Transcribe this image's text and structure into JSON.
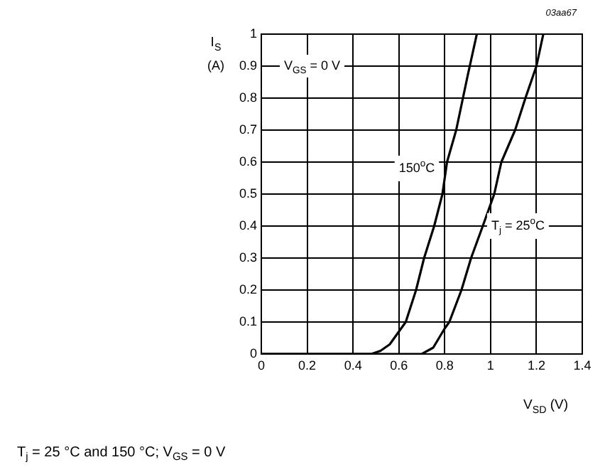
{
  "chart_data": {
    "type": "line",
    "xlabel": "V$_{SD}$ (V)",
    "ylabel": "I$_{S}$ (A)",
    "xlim": [
      0,
      1.4
    ],
    "xticks": [
      0,
      0.2,
      0.4,
      0.6,
      0.8,
      1,
      1.2,
      1.4
    ],
    "ylim": [
      0,
      1
    ],
    "yticks": [
      0,
      0.1,
      0.2,
      0.3,
      0.4,
      0.5,
      0.6,
      0.7,
      0.8,
      0.9,
      1
    ],
    "grid": true,
    "legend": false,
    "marker": "none",
    "line_style": "solid",
    "annotations": [
      "V$_{GS}$ = 0 V",
      "03aa67",
      "T$_{j}$ = 25 °C and 150 °C; V$_{GS}$ = 0 V"
    ],
    "series": [
      {
        "name": "150$^{o}$C",
        "color": "#000000",
        "x": [
          0,
          0.2,
          0.4,
          0.48,
          0.52,
          0.56,
          0.6,
          0.63,
          0.675,
          0.71,
          0.754,
          0.79,
          0.81,
          0.85,
          0.9,
          0.94
        ],
        "values": [
          0,
          0,
          0,
          0,
          0.01,
          0.03,
          0.07,
          0.1,
          0.2,
          0.3,
          0.4,
          0.5,
          0.6,
          0.7,
          0.87,
          1
        ]
      },
      {
        "name": "T$_{j}$ = 25$^{o}$C",
        "color": "#000000",
        "x": [
          0,
          0.4,
          0.7,
          0.75,
          0.8,
          0.82,
          0.873,
          0.915,
          0.966,
          1.016,
          1.047,
          1.107,
          1.152,
          1.2,
          1.23
        ],
        "values": [
          0,
          0,
          0,
          0.02,
          0.08,
          0.1,
          0.2,
          0.3,
          0.4,
          0.5,
          0.6,
          0.7,
          0.8,
          0.9,
          1
        ]
      }
    ]
  }
}
